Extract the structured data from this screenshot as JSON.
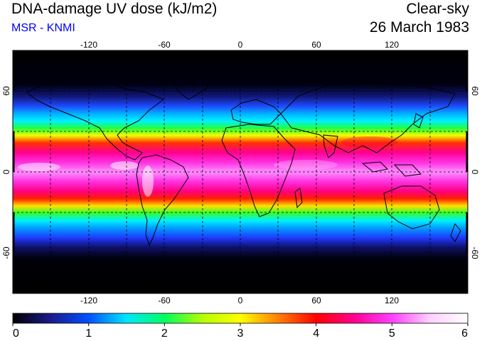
{
  "header": {
    "title": "DNA-damage UV dose (kJ/m2)",
    "source": "MSR - KNMI",
    "condition": "Clear-sky",
    "date": "26 March 1983"
  },
  "map": {
    "projection": "equirectangular",
    "lon_range": [
      -180,
      180
    ],
    "lat_range": [
      -90,
      90
    ],
    "lon_ticks": [
      "-120",
      "-60",
      "0",
      "60",
      "120"
    ],
    "lat_ticks": [
      "60",
      "0",
      "-60"
    ],
    "gridlines": "dashed, every 30 degrees",
    "coastlines": true
  },
  "colorbar": {
    "labels": [
      "0",
      "1",
      "2",
      "3",
      "4",
      "5",
      "6"
    ],
    "min": 0,
    "max": 6,
    "stops": [
      "#000000",
      "#1a1a8c",
      "#0050ff",
      "#00e6ff",
      "#00ff60",
      "#b4ff00",
      "#ffff00",
      "#ff8000",
      "#ff0000",
      "#ff0090",
      "#ff40ff",
      "#ffd0ff",
      "#ffffff"
    ]
  },
  "colors": {
    "title_text": "#000000",
    "source_text": "#0000ff"
  }
}
